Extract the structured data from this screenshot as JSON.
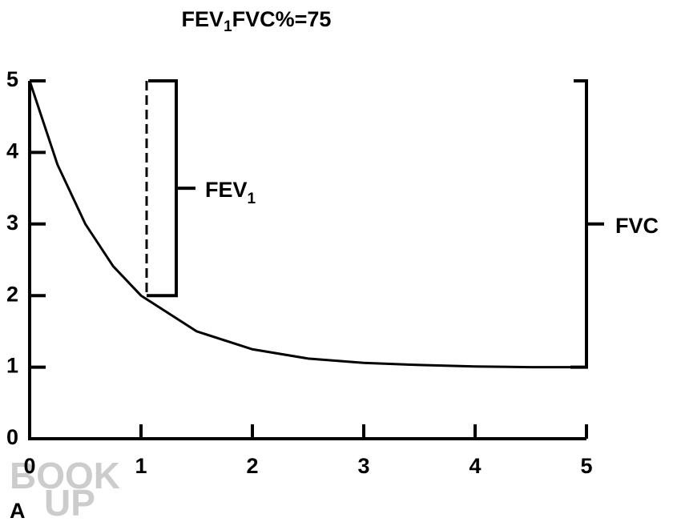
{
  "chart_data": {
    "type": "line",
    "title": {
      "main": "FEV",
      "sub": "1",
      "rest": "FVC%=75"
    },
    "x": [
      0,
      0.25,
      0.5,
      0.75,
      1,
      1.5,
      2,
      2.5,
      3,
      3.5,
      4,
      4.5,
      5
    ],
    "series": [
      {
        "color": "#000000",
        "values": [
          5,
          3.83,
          3.0,
          2.41,
          2.0,
          1.5,
          1.25,
          1.12,
          1.06,
          1.03,
          1.01,
          1.0,
          1.0
        ]
      }
    ],
    "xlim": [
      0,
      5
    ],
    "ylim": [
      0,
      5
    ],
    "xticks": [
      0,
      1,
      2,
      3,
      4,
      5
    ],
    "yticks": [
      0,
      1,
      2,
      3,
      4,
      5
    ],
    "grid": false,
    "annotations": {
      "fev1": {
        "main": "FEV",
        "sub": "1",
        "range": [
          5,
          2
        ]
      },
      "fvc": {
        "label": "FVC",
        "range": [
          5,
          1
        ]
      }
    },
    "panel_label": "A",
    "watermark": [
      "BOOK",
      "UP"
    ]
  }
}
